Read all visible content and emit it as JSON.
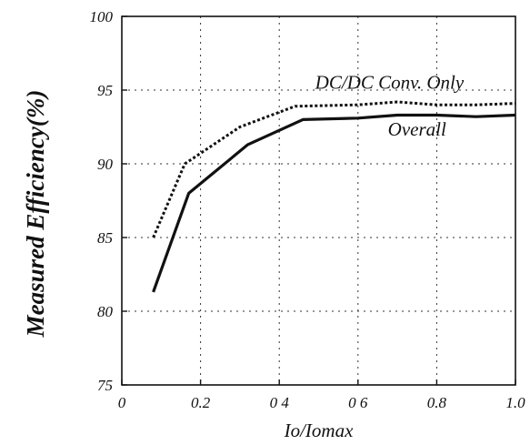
{
  "chart_data": {
    "type": "line",
    "title": "",
    "xlabel": "Io/Iomax",
    "ylabel": "Measured Efficiency(%)",
    "xlim": [
      0,
      1.0
    ],
    "ylim": [
      75,
      100
    ],
    "grid": true,
    "x_tick_labels": [
      "0",
      "0.2",
      "0 4",
      "0 6",
      "0.8",
      "1.0"
    ],
    "x_tick_values": [
      0,
      0.2,
      0.4,
      0.6,
      0.8,
      1.0
    ],
    "y_tick_labels": [
      "75",
      "80",
      "85",
      "90",
      "95",
      "100"
    ],
    "y_tick_values": [
      75,
      80,
      85,
      90,
      95,
      100
    ],
    "series": [
      {
        "name": "DC/DC Conv. Only",
        "style": "dotted",
        "x": [
          0.08,
          0.16,
          0.3,
          0.44,
          0.6,
          0.7,
          0.8,
          0.9,
          1.0
        ],
        "y": [
          85.0,
          90.0,
          92.5,
          93.9,
          94.0,
          94.2,
          94.0,
          94.0,
          94.1
        ]
      },
      {
        "name": "Overall",
        "style": "solid",
        "x": [
          0.08,
          0.17,
          0.32,
          0.46,
          0.6,
          0.7,
          0.8,
          0.9,
          1.0
        ],
        "y": [
          81.3,
          88.0,
          91.3,
          93.0,
          93.1,
          93.3,
          93.3,
          93.2,
          93.3
        ]
      }
    ],
    "annotations": [
      {
        "text": "DC/DC Conv. Only",
        "x": 0.68,
        "y": 95.1
      },
      {
        "text": "Overall",
        "x": 0.75,
        "y": 91.9
      }
    ],
    "colors": {
      "line": "#111111",
      "grid": "#333333",
      "background": "#ffffff"
    }
  }
}
